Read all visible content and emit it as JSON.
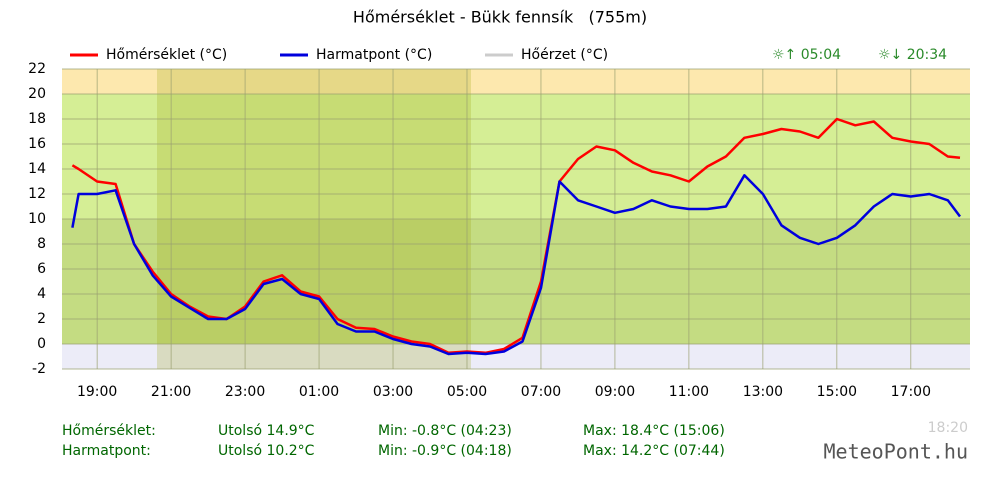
{
  "chart_data": {
    "type": "line",
    "title": "Hőmérséklet - Bükk fennsík   (755m)",
    "x": [
      18.33,
      18.5,
      19,
      19.5,
      20,
      20.5,
      21,
      21.5,
      22,
      22.5,
      23,
      23.5,
      24,
      24.5,
      25,
      25.5,
      26,
      26.5,
      27,
      27.5,
      28,
      28.5,
      29,
      29.5,
      30,
      30.5,
      31,
      31.5,
      32,
      32.5,
      33,
      33.5,
      34,
      34.5,
      35,
      35.5,
      36,
      36.5,
      37,
      37.5,
      38,
      38.5,
      39,
      39.5,
      40,
      40.5,
      41,
      41.5,
      42,
      42.33
    ],
    "series": [
      {
        "name": "Hőmérséklet (°C)",
        "color": "#ff0000",
        "values": [
          14.3,
          14.0,
          13.0,
          12.8,
          8.0,
          5.8,
          4.0,
          3.0,
          2.2,
          2.0,
          3.0,
          5.0,
          5.5,
          4.2,
          3.8,
          2.0,
          1.3,
          1.2,
          0.6,
          0.2,
          0.0,
          -0.7,
          -0.6,
          -0.7,
          -0.4,
          0.5,
          5.0,
          13.0,
          14.8,
          15.8,
          15.5,
          14.5,
          13.8,
          13.5,
          13.0,
          14.2,
          15.0,
          16.5,
          16.8,
          17.2,
          17.0,
          16.5,
          18.0,
          17.5,
          17.8,
          16.5,
          16.2,
          16.0,
          15.0,
          14.9
        ]
      },
      {
        "name": "Harmatpont (°C)",
        "color": "#0000dd",
        "values": [
          9.3,
          12.0,
          12.0,
          12.3,
          8.0,
          5.5,
          3.8,
          2.9,
          2.0,
          2.0,
          2.8,
          4.8,
          5.2,
          4.0,
          3.6,
          1.6,
          1.0,
          1.0,
          0.4,
          0.0,
          -0.2,
          -0.8,
          -0.7,
          -0.8,
          -0.6,
          0.2,
          4.5,
          13.0,
          11.5,
          11.0,
          10.5,
          10.8,
          11.5,
          11.0,
          10.8,
          10.8,
          11.0,
          13.5,
          12.0,
          9.5,
          8.5,
          8.0,
          8.5,
          9.5,
          11.0,
          12.0,
          11.8,
          12.0,
          11.5,
          10.2
        ]
      },
      {
        "name": "Hőérzet (°C)",
        "color": "#cccccc",
        "values": [
          null,
          null,
          null,
          null,
          null,
          null,
          null,
          null,
          null,
          null,
          null,
          null,
          null,
          null,
          null,
          null,
          null,
          null,
          null,
          null,
          null,
          null,
          null,
          null,
          null,
          null,
          null,
          null,
          null,
          null,
          null,
          null,
          null,
          null,
          null,
          null,
          null,
          null,
          null,
          null,
          null,
          null,
          null,
          null,
          null,
          null,
          null,
          null,
          null,
          null
        ]
      }
    ],
    "sunrise": "☼↑ 05:04",
    "sunset": "☼↓ 20:34",
    "xlim": [
      18.05,
      42.6
    ],
    "xticks": [
      {
        "value": 19,
        "label": "19:00"
      },
      {
        "value": 21,
        "label": "21:00"
      },
      {
        "value": 23,
        "label": "23:00"
      },
      {
        "value": 25,
        "label": "01:00"
      },
      {
        "value": 27,
        "label": "03:00"
      },
      {
        "value": 29,
        "label": "05:00"
      },
      {
        "value": 31,
        "label": "07:00"
      },
      {
        "value": 33,
        "label": "09:00"
      },
      {
        "value": 35,
        "label": "11:00"
      },
      {
        "value": 37,
        "label": "13:00"
      },
      {
        "value": 39,
        "label": "15:00"
      },
      {
        "value": 41,
        "label": "17:00"
      }
    ],
    "ylim": [
      -2,
      22
    ],
    "yticks": [
      -2,
      0,
      2,
      4,
      6,
      8,
      10,
      12,
      14,
      16,
      18,
      20,
      22
    ],
    "grid": true,
    "stats": [
      [
        "Hőmérséklet:",
        "Utolsó 14.9°C",
        "Min: -0.8°C (04:23)",
        "Max: 18.4°C (15:06)"
      ],
      [
        "Harmatpont:",
        "Utolsó 10.2°C",
        "Min: -0.9°C (04:18)",
        "Max: 14.2°C (07:44)"
      ]
    ],
    "updated": "18:20",
    "brand": "MeteoPont.hu"
  }
}
